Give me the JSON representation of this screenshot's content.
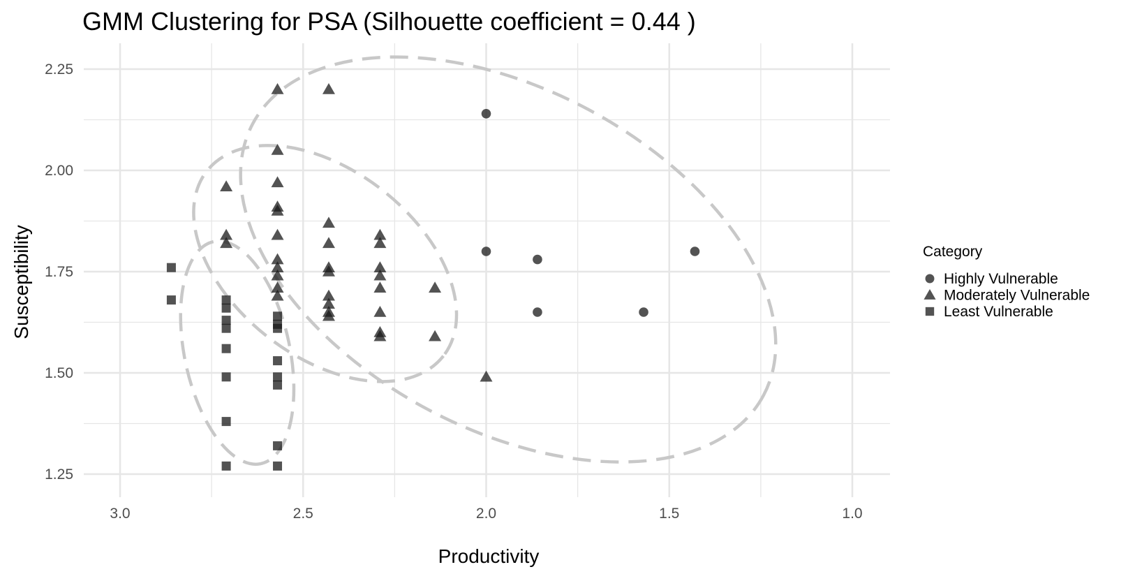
{
  "chart_data": {
    "type": "scatter",
    "title": "GMM Clustering for PSA (Silhouette coefficient = 0.44 )",
    "xlabel": "Productivity",
    "ylabel": "Susceptibility",
    "x_reversed": true,
    "xlim": [
      3.0,
      1.0
    ],
    "ylim": [
      1.25,
      2.25
    ],
    "x_ticks": [
      "3.0",
      "2.5",
      "2.0",
      "1.5",
      "1.0"
    ],
    "y_ticks": [
      "1.25",
      "1.50",
      "1.75",
      "2.00",
      "2.25"
    ],
    "grid": true,
    "legend": {
      "title": "Category",
      "placement": "right"
    },
    "colors": {
      "points": "#1a1a1a",
      "grid": "#e6e6e6",
      "ellipse": "#c8c8c8"
    },
    "series": [
      {
        "name": "Highly Vulnerable",
        "shape": "circle",
        "points": [
          [
            2.0,
            2.14
          ],
          [
            2.0,
            1.8
          ],
          [
            1.86,
            1.78
          ],
          [
            1.43,
            1.8
          ],
          [
            1.86,
            1.65
          ],
          [
            1.57,
            1.65
          ]
        ]
      },
      {
        "name": "Moderately Vulnerable",
        "shape": "triangle",
        "points": [
          [
            2.71,
            1.96
          ],
          [
            2.71,
            1.84
          ],
          [
            2.71,
            1.82
          ],
          [
            2.57,
            2.2
          ],
          [
            2.57,
            2.05
          ],
          [
            2.57,
            1.97
          ],
          [
            2.57,
            1.91
          ],
          [
            2.57,
            1.9
          ],
          [
            2.57,
            1.84
          ],
          [
            2.57,
            1.78
          ],
          [
            2.57,
            1.76
          ],
          [
            2.57,
            1.74
          ],
          [
            2.57,
            1.71
          ],
          [
            2.57,
            1.69
          ],
          [
            2.43,
            2.2
          ],
          [
            2.43,
            1.87
          ],
          [
            2.43,
            1.82
          ],
          [
            2.43,
            1.76
          ],
          [
            2.43,
            1.75
          ],
          [
            2.43,
            1.69
          ],
          [
            2.43,
            1.67
          ],
          [
            2.43,
            1.65
          ],
          [
            2.43,
            1.64
          ],
          [
            2.29,
            1.84
          ],
          [
            2.29,
            1.82
          ],
          [
            2.29,
            1.76
          ],
          [
            2.29,
            1.74
          ],
          [
            2.29,
            1.71
          ],
          [
            2.29,
            1.65
          ],
          [
            2.29,
            1.6
          ],
          [
            2.29,
            1.59
          ],
          [
            2.14,
            1.71
          ],
          [
            2.14,
            1.59
          ],
          [
            2.0,
            1.49
          ]
        ]
      },
      {
        "name": "Least Vulnerable",
        "shape": "square",
        "points": [
          [
            2.86,
            1.76
          ],
          [
            2.86,
            1.68
          ],
          [
            2.71,
            1.68
          ],
          [
            2.71,
            1.66
          ],
          [
            2.71,
            1.63
          ],
          [
            2.71,
            1.61
          ],
          [
            2.71,
            1.56
          ],
          [
            2.71,
            1.49
          ],
          [
            2.71,
            1.38
          ],
          [
            2.71,
            1.27
          ],
          [
            2.57,
            1.64
          ],
          [
            2.57,
            1.62
          ],
          [
            2.57,
            1.61
          ],
          [
            2.57,
            1.53
          ],
          [
            2.57,
            1.49
          ],
          [
            2.57,
            1.47
          ],
          [
            2.57,
            1.32
          ],
          [
            2.57,
            1.27
          ]
        ]
      }
    ],
    "ellipses": [
      {
        "cluster": "Highly Vulnerable",
        "cx": 1.94,
        "cy": 1.78,
        "rx": 0.79,
        "ry": 0.42,
        "angle": 28
      },
      {
        "cluster": "Moderately Vulnerable",
        "cx": 2.44,
        "cy": 1.77,
        "rx": 0.41,
        "ry": 0.23,
        "angle": 38
      },
      {
        "cluster": "Least Vulnerable",
        "cx": 2.68,
        "cy": 1.55,
        "rx": 0.31,
        "ry": 0.13,
        "angle": 78
      }
    ]
  }
}
